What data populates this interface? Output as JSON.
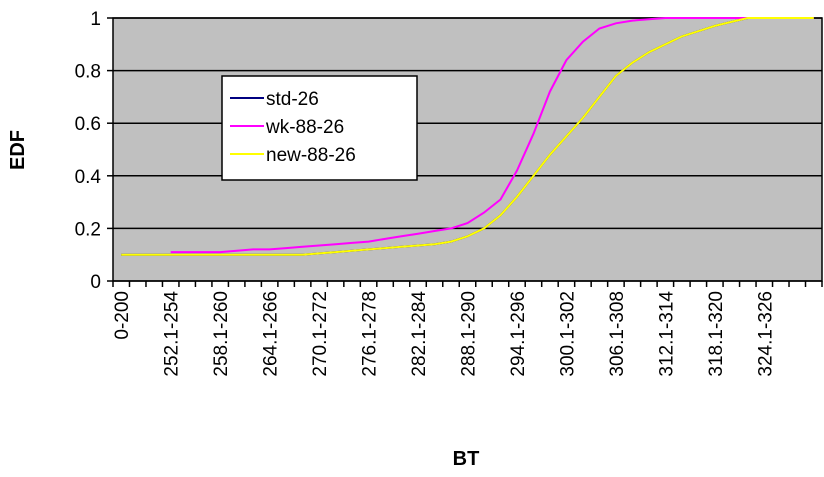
{
  "chart_data": {
    "type": "line",
    "x_label": "BT",
    "y_label": "EDF",
    "categories": [
      "0-200",
      null,
      null,
      "252.1-254",
      null,
      null,
      "258.1-260",
      null,
      null,
      "264.1-266",
      null,
      null,
      "270.1-272",
      null,
      null,
      "276.1-278",
      null,
      null,
      "282.1-284",
      null,
      null,
      "288.1-290",
      null,
      null,
      "294.1-296",
      null,
      null,
      "300.1-302",
      null,
      null,
      "306.1-308",
      null,
      null,
      "312.1-314",
      null,
      null,
      "318.1-320",
      null,
      null,
      "324.1-326",
      null,
      null,
      null
    ],
    "series": [
      {
        "name": "std-26",
        "color": "#000080",
        "values": [
          0.1,
          0.1,
          0.1,
          0.1,
          0.1,
          0.1,
          0.1,
          0.1,
          0.1,
          0.1,
          0.1,
          0.1,
          0.105,
          0.11,
          0.115,
          0.12,
          0.125,
          0.13,
          0.135,
          0.14,
          0.15,
          0.17,
          0.2,
          0.25,
          0.32,
          0.4,
          0.48,
          0.55,
          0.62,
          0.7,
          0.78,
          0.83,
          0.87,
          0.9,
          0.93,
          0.95,
          0.97,
          0.985,
          1,
          1,
          1,
          1,
          1
        ]
      },
      {
        "name": "wk-88-26",
        "color": "#ff00ff",
        "values": [
          null,
          null,
          null,
          0.11,
          0.11,
          0.11,
          0.11,
          0.115,
          0.12,
          0.12,
          0.125,
          0.13,
          0.135,
          0.14,
          0.145,
          0.15,
          0.16,
          0.17,
          0.18,
          0.19,
          0.2,
          0.22,
          0.26,
          0.31,
          0.42,
          0.56,
          0.72,
          0.84,
          0.91,
          0.96,
          0.98,
          0.99,
          0.995,
          1,
          1,
          1,
          1,
          1,
          1,
          1,
          1,
          1,
          1
        ]
      },
      {
        "name": "new-88-26",
        "color": "#ffff00",
        "values": [
          0.1,
          0.1,
          0.1,
          0.1,
          0.1,
          0.1,
          0.1,
          0.1,
          0.1,
          0.1,
          0.1,
          0.1,
          0.105,
          0.11,
          0.115,
          0.12,
          0.125,
          0.13,
          0.135,
          0.14,
          0.15,
          0.17,
          0.2,
          0.25,
          0.32,
          0.4,
          0.48,
          0.55,
          0.62,
          0.7,
          0.78,
          0.83,
          0.87,
          0.9,
          0.93,
          0.95,
          0.97,
          0.985,
          1,
          1,
          1,
          1,
          1
        ]
      }
    ],
    "ylim": [
      0,
      1
    ],
    "yticks": [
      0,
      0.2,
      0.4,
      0.6,
      0.8,
      1
    ],
    "grid": true,
    "plot_background": "#c0c0c0"
  }
}
